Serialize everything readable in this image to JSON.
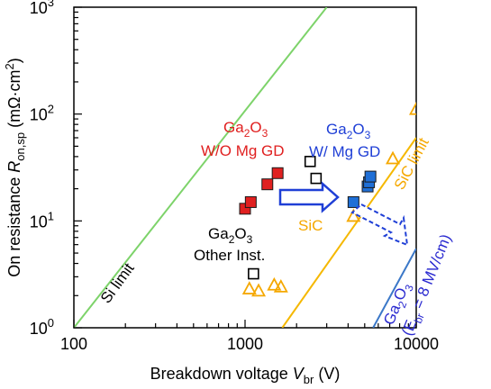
{
  "chart_data": {
    "type": "scatter",
    "xscale": "log",
    "yscale": "log",
    "xlim": [
      100,
      10000
    ],
    "ylim": [
      1,
      1000
    ],
    "xlabel": "Breakdown voltage V_br (V)",
    "ylabel": "On resistance R_on,sp (mΩ·cm²)",
    "xlabel_parts": {
      "main": "Breakdown voltage ",
      "var": "V",
      "sub": "br",
      "unit": " (V)"
    },
    "ylabel_parts": {
      "main": "On resistance ",
      "var": "R",
      "sub": "on,sp",
      "unit": " (mΩ·cm",
      "sup": "2",
      "end": ")"
    },
    "x_ticks": [
      "100",
      "1000",
      "10000"
    ],
    "y_ticks": [
      {
        "base": "10",
        "exp": "0"
      },
      {
        "base": "10",
        "exp": "1"
      },
      {
        "base": "10",
        "exp": "2"
      },
      {
        "base": "10",
        "exp": "3"
      }
    ],
    "limit_lines": [
      {
        "name": "Si limit",
        "color": "#7dd36a",
        "points": [
          [
            100,
            1
          ],
          [
            3000,
            1000
          ]
        ]
      },
      {
        "name": "SiC limit",
        "color": "#f5b800",
        "points": [
          [
            1650,
            1
          ],
          [
            10000,
            60
          ]
        ]
      },
      {
        "name": "Ga2O3 (Ebr = 8 MV/cm)",
        "color": "#3b78c8",
        "points": [
          [
            5600,
            1
          ],
          [
            10000,
            5.5
          ]
        ]
      }
    ],
    "series": [
      {
        "name": "Ga2O3 W/O Mg GD",
        "marker": "square-filled",
        "color": "#e02020",
        "points": [
          [
            1000,
            13
          ],
          [
            1080,
            15
          ],
          [
            1350,
            22
          ],
          [
            1550,
            28
          ]
        ]
      },
      {
        "name": "Ga2O3 W/ Mg GD",
        "marker": "square-filled",
        "color": "#1f6fd6",
        "points": [
          [
            4300,
            15
          ],
          [
            5200,
            21
          ],
          [
            5300,
            23
          ],
          [
            5400,
            26
          ]
        ]
      },
      {
        "name": "Ga2O3 Other Inst.",
        "marker": "square-open",
        "color": "#000000",
        "points": [
          [
            1120,
            3.2
          ],
          [
            2400,
            36
          ],
          [
            2600,
            25
          ]
        ]
      },
      {
        "name": "SiC",
        "marker": "triangle-open",
        "color": "#f5a800",
        "points": [
          [
            1060,
            2.3
          ],
          [
            1200,
            2.2
          ],
          [
            1480,
            2.5
          ],
          [
            1620,
            2.4
          ],
          [
            4300,
            11
          ],
          [
            7300,
            38
          ],
          [
            10000,
            110
          ]
        ]
      }
    ],
    "annotations": {
      "si_limit": "Si limit",
      "sic_limit": "SiC limit",
      "sic_label": "SiC",
      "ga_wo_line1_base": "Ga",
      "ga_wo_line1_sub": "2",
      "ga_wo_line1_tail": "O",
      "ga_wo_line1_sub2": "3",
      "ga_wo_line2": "W/O Mg GD",
      "ga_w_line1_base": "Ga",
      "ga_w_line1_sub": "2",
      "ga_w_line1_tail": "O",
      "ga_w_line1_sub2": "3",
      "ga_w_line2": "W/ Mg GD",
      "ga_other_line1_base": "Ga",
      "ga_other_line1_sub": "2",
      "ga_other_line1_tail": "O",
      "ga_other_line1_sub2": "3",
      "ga_other_line2": "Other Inst.",
      "ga_limit_base": "Ga",
      "ga_limit_sub": "2",
      "ga_limit_tail": "O",
      "ga_limit_sub2": "3",
      "ga_limit_line2_open": "(E",
      "ga_limit_line2_sub": "br",
      "ga_limit_line2_close": " = 8 MV/cm)"
    },
    "colors": {
      "wo_label": "#e02020",
      "w_label": "#1f3fd6",
      "sic_label": "#f5a800",
      "ga_limit_label": "#2a2ad0",
      "arrow_fill": "#1f3fd6"
    },
    "grid": false
  }
}
